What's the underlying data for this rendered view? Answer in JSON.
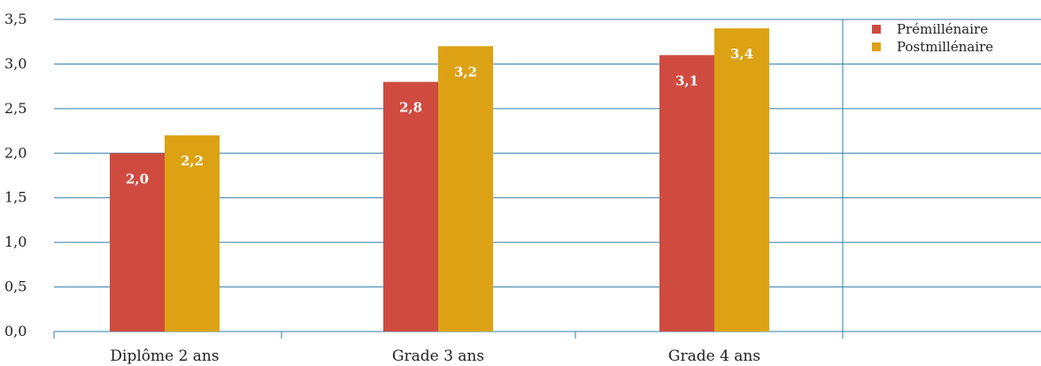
{
  "chart_data": {
    "type": "bar",
    "categories": [
      "Diplôme 2 ans",
      "Grade 3 ans",
      "Grade 4 ans"
    ],
    "series": [
      {
        "name": "Prémillénaire",
        "values": [
          2.0,
          2.8,
          3.1
        ],
        "labels": [
          "2,0",
          "2,8",
          "3,1"
        ],
        "color": "#cf4b3f"
      },
      {
        "name": "Postmillénaire",
        "values": [
          2.2,
          3.2,
          3.4
        ],
        "labels": [
          "2,2",
          "3,2",
          "3,4"
        ],
        "color": "#dca214"
      }
    ],
    "ylim": [
      0,
      3.5
    ],
    "yticks": [
      0,
      0.5,
      1.0,
      1.5,
      2.0,
      2.5,
      3.0,
      3.5
    ],
    "ytick_labels": [
      "0,0",
      "0,5",
      "1,0",
      "1,5",
      "2,0",
      "2,5",
      "3,0",
      "3,5"
    ],
    "grid": true,
    "grid_color": "#2f7fa7",
    "legend_position": "top-right",
    "title": "",
    "xlabel": "",
    "ylabel": ""
  }
}
